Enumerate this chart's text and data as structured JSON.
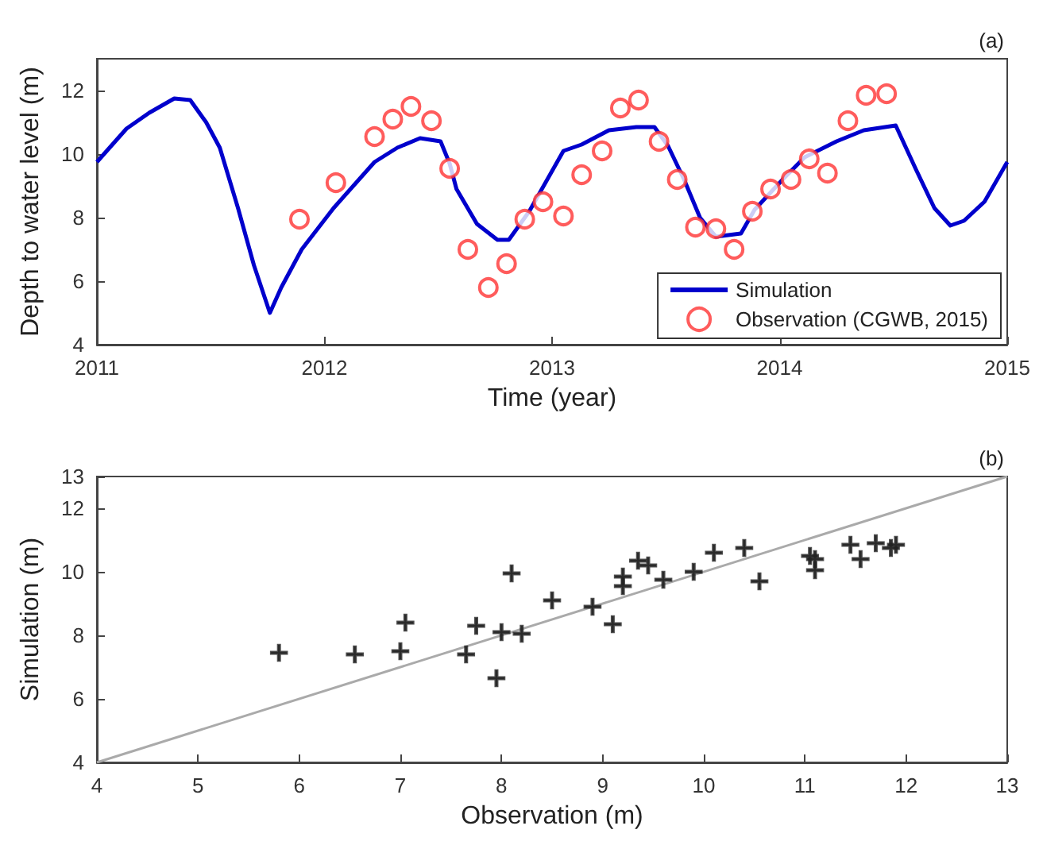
{
  "chart_data": [
    {
      "type": "line",
      "xlabel": "Time (year)",
      "ylabel": "Depth to water level (m)",
      "annotations": [
        "(a)"
      ],
      "xlim": [
        2011,
        2015
      ],
      "xticks": [
        2011,
        2012,
        2013,
        2014,
        2015
      ],
      "ylim": [
        4,
        13
      ],
      "yticks": [
        4,
        6,
        8,
        10,
        12
      ],
      "grid": false,
      "legend": "bottom right",
      "series": [
        {
          "name": "Simulation",
          "marker": "none",
          "color": "#0000cc",
          "x": [
            2011.0,
            2011.13,
            2011.23,
            2011.34,
            2011.41,
            2011.48,
            2011.54,
            2011.62,
            2011.69,
            2011.76,
            2011.81,
            2011.9,
            2012.04,
            2012.22,
            2012.32,
            2012.42,
            2012.51,
            2012.55,
            2012.58,
            2012.67,
            2012.76,
            2012.81,
            2012.9,
            2013.05,
            2013.13,
            2013.25,
            2013.37,
            2013.45,
            2013.51,
            2013.58,
            2013.65,
            2013.72,
            2013.83,
            2013.89,
            2014.02,
            2014.11,
            2014.25,
            2014.37,
            2014.51,
            2014.6,
            2014.68,
            2014.75,
            2014.81,
            2014.9,
            2015.0
          ],
          "values": [
            9.75,
            10.8,
            11.3,
            11.75,
            11.7,
            11.0,
            10.2,
            8.3,
            6.5,
            5.0,
            5.8,
            7.0,
            8.3,
            9.75,
            10.2,
            10.5,
            10.4,
            9.7,
            8.9,
            7.8,
            7.3,
            7.3,
            8.2,
            10.1,
            10.3,
            10.75,
            10.85,
            10.85,
            10.25,
            9.2,
            8.0,
            7.4,
            7.5,
            8.25,
            9.25,
            9.9,
            10.4,
            10.75,
            10.9,
            9.5,
            8.3,
            7.75,
            7.9,
            8.5,
            9.75
          ]
        },
        {
          "name": "Observation (CGWB, 2015)",
          "type": "scatter",
          "marker": "circle",
          "color": "#ff3333",
          "x": [
            2011.89,
            2012.05,
            2012.22,
            2012.3,
            2012.38,
            2012.47,
            2012.55,
            2012.63,
            2012.72,
            2012.8,
            2012.88,
            2012.96,
            2013.05,
            2013.13,
            2013.22,
            2013.3,
            2013.38,
            2013.47,
            2013.55,
            2013.63,
            2013.72,
            2013.8,
            2013.88,
            2013.96,
            2014.05,
            2014.13,
            2014.21,
            2014.3,
            2014.38,
            2014.47
          ],
          "values": [
            7.95,
            9.1,
            10.55,
            11.1,
            11.5,
            11.05,
            9.55,
            7.0,
            5.8,
            6.55,
            7.95,
            8.5,
            8.05,
            9.35,
            10.1,
            11.45,
            11.7,
            10.4,
            9.2,
            7.7,
            7.65,
            7.0,
            8.2,
            8.9,
            9.2,
            9.85,
            9.4,
            11.05,
            11.85,
            11.9
          ]
        }
      ]
    },
    {
      "type": "scatter",
      "xlabel": "Observation (m)",
      "ylabel": "Simulation (m)",
      "annotations": [
        "(b)"
      ],
      "xlim": [
        4,
        13
      ],
      "xticks": [
        4,
        5,
        6,
        7,
        8,
        9,
        10,
        11,
        12,
        13
      ],
      "ylim": [
        4,
        13
      ],
      "yticks": [
        4,
        6,
        8,
        10,
        12,
        13
      ],
      "grid": false,
      "legend": false,
      "series": [
        {
          "type": "line",
          "marker": "none",
          "color": "#aaaaaa",
          "x": [
            4,
            13
          ],
          "values": [
            4,
            13
          ]
        },
        {
          "marker": "cross",
          "color": "#222222",
          "x": [
            5.8,
            6.55,
            7.0,
            7.05,
            7.65,
            7.75,
            7.95,
            8.0,
            8.1,
            8.2,
            8.5,
            8.9,
            9.1,
            9.2,
            9.2,
            9.35,
            9.45,
            9.6,
            9.9,
            10.1,
            10.4,
            10.55,
            11.05,
            11.1,
            11.1,
            11.45,
            11.55,
            11.7,
            11.85,
            11.9
          ],
          "values": [
            7.45,
            7.4,
            7.5,
            8.4,
            7.4,
            8.3,
            6.65,
            8.1,
            9.95,
            8.05,
            9.1,
            8.9,
            8.35,
            9.85,
            9.55,
            10.35,
            10.2,
            9.75,
            10.0,
            10.6,
            10.75,
            9.7,
            10.5,
            10.4,
            10.05,
            10.85,
            10.4,
            10.9,
            10.75,
            10.85
          ]
        }
      ]
    }
  ]
}
